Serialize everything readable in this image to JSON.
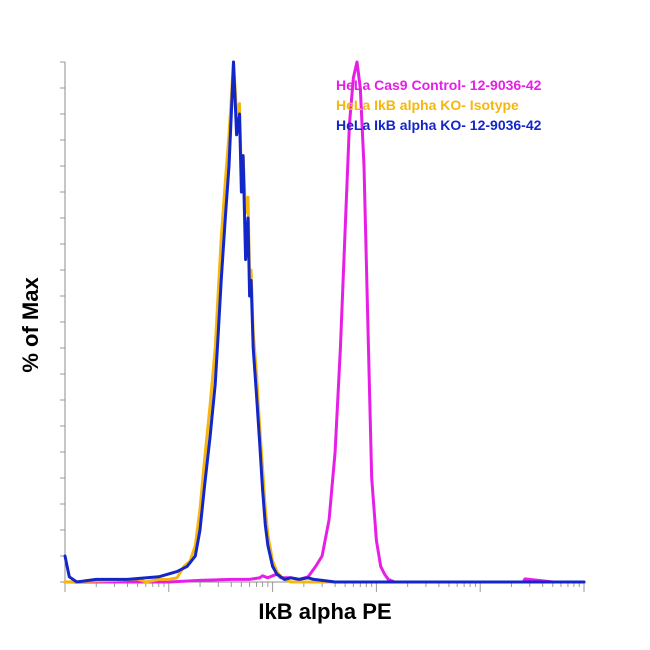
{
  "chart_data": {
    "type": "line",
    "xlabel": "IkB alpha PE",
    "ylabel": "% of Max",
    "xscale": "log",
    "xlim": [
      1,
      100000
    ],
    "ylim": [
      0,
      100
    ],
    "grid": false,
    "legend_position": "top-right",
    "series": [
      {
        "name": "HeLa Cas9 Control- 12-9036-42",
        "color": "#e61ee6",
        "x": [
          1,
          10,
          20,
          40,
          60,
          75,
          80,
          90,
          100,
          110,
          115,
          120,
          130,
          150,
          180,
          220,
          260,
          300,
          350,
          400,
          450,
          500,
          550,
          600,
          650,
          700,
          760,
          800,
          850,
          900,
          1000,
          1100,
          1200,
          1300,
          1500,
          2000,
          5000,
          10000,
          26000,
          27000,
          50000,
          100000
        ],
        "y": [
          0,
          0,
          0.3,
          0.5,
          0.5,
          0.8,
          1.2,
          0.8,
          1.2,
          1.5,
          1.2,
          0.8,
          0.8,
          0.8,
          0.5,
          1,
          3,
          5,
          12,
          25,
          45,
          68,
          88,
          97,
          100,
          95,
          80,
          62,
          40,
          20,
          8,
          3,
          1.5,
          0.5,
          0,
          0,
          0,
          0,
          0,
          0.6,
          0,
          0
        ]
      },
      {
        "name": "HeLa IkB alpha KO- Isotype",
        "color": "#f5b70f",
        "x": [
          1,
          3,
          5,
          6,
          8,
          10,
          12,
          14,
          16,
          18,
          20,
          22,
          25,
          28,
          30,
          32,
          35,
          38,
          40,
          42,
          45,
          48,
          50,
          52,
          55,
          58,
          60,
          62,
          65,
          70,
          75,
          80,
          85,
          90,
          100,
          110,
          120,
          130,
          150,
          200,
          500,
          1000,
          100000
        ],
        "y": [
          0,
          0.3,
          0.6,
          0,
          0.5,
          0.5,
          0.8,
          3,
          4,
          7,
          14,
          23,
          34,
          45,
          56,
          66,
          77,
          86,
          93,
          100,
          90,
          92,
          78,
          82,
          71,
          74,
          58,
          60,
          48,
          40,
          30,
          22,
          14,
          9,
          4,
          2,
          1,
          0.5,
          0,
          0,
          0,
          0,
          0
        ]
      },
      {
        "name": "HeLa IkB alpha KO- 12-9036-42",
        "color": "#1326c8",
        "x": [
          1,
          1.1,
          1.3,
          2,
          4,
          8,
          12,
          15,
          18,
          20,
          22,
          25,
          28,
          30,
          32,
          35,
          38,
          40,
          42,
          45,
          48,
          50,
          52,
          55,
          58,
          60,
          62,
          65,
          70,
          75,
          80,
          85,
          90,
          100,
          110,
          120,
          130,
          150,
          180,
          220,
          250,
          300,
          400,
          1000,
          100000
        ],
        "y": [
          5,
          1,
          0,
          0.5,
          0.5,
          1,
          2,
          3,
          5,
          10,
          18,
          28,
          38,
          48,
          58,
          70,
          80,
          90,
          100,
          86,
          90,
          75,
          82,
          62,
          70,
          55,
          58,
          45,
          36,
          27,
          18,
          11,
          7,
          3,
          1.5,
          1,
          0.5,
          0.8,
          0.5,
          0.8,
          0.5,
          0.3,
          0,
          0,
          0
        ]
      }
    ]
  }
}
